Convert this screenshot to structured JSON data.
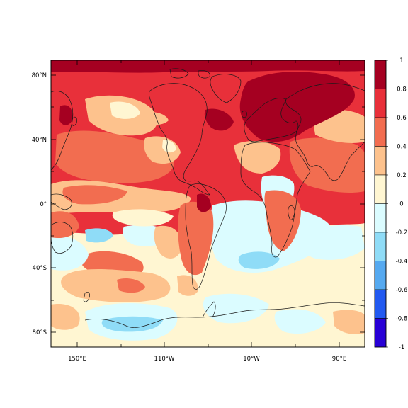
{
  "map": {
    "lat_labels": [
      "80°N",
      "40°N",
      "0°",
      "40°S",
      "80°S"
    ],
    "lon_labels": [
      "150°E",
      "110°W",
      "10°W",
      "90°E"
    ]
  },
  "colorbar": {
    "labels": [
      "1",
      "0.8",
      "0.6",
      "0.4",
      "0.2",
      "0",
      "-0.2",
      "-0.4",
      "-0.6",
      "-0.8",
      "-1"
    ],
    "colors": [
      "#a50021",
      "#e8303a",
      "#f26d50",
      "#fdc28d",
      "#fff6d2",
      "#dbfcff",
      "#8fdcf7",
      "#55a9f0",
      "#2259f0",
      "#2800d6"
    ]
  },
  "palette": {
    "deep_red": "#a50021",
    "red": "#e8303a",
    "salmon": "#f26d50",
    "peach": "#fdc28d",
    "cream": "#fff6d2",
    "pale_cyan": "#dbfcff",
    "light_blue": "#8fdcf7",
    "coastline": "#1a1a1a"
  }
}
